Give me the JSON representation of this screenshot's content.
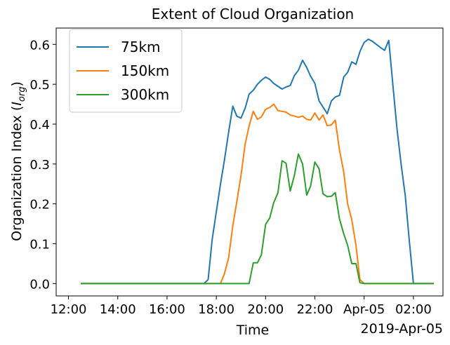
{
  "chart_data": {
    "type": "line",
    "title": "Extent of Cloud Organization",
    "xlabel": "Time",
    "ylabel_text": "Organization Index (",
    "ylabel_symbol": "I",
    "ylabel_subscript": "org",
    "ylabel_close": ")",
    "x_unit": "hours from 2019-04-04 00:00",
    "xlim": [
      11.5,
      27.2
    ],
    "ylim": [
      -0.031,
      0.641
    ],
    "x_ticks": [
      {
        "x": 12,
        "label": "12:00"
      },
      {
        "x": 14,
        "label": "14:00"
      },
      {
        "x": 16,
        "label": "16:00"
      },
      {
        "x": 18,
        "label": "18:00"
      },
      {
        "x": 20,
        "label": "20:00"
      },
      {
        "x": 22,
        "label": "22:00"
      },
      {
        "x": 24,
        "label": "Apr-05"
      },
      {
        "x": 26,
        "label": "02:00"
      }
    ],
    "x_offset_label": "2019-Apr-05",
    "y_ticks": [
      0.0,
      0.1,
      0.2,
      0.3,
      0.4,
      0.5,
      0.6
    ],
    "y_tick_labels": [
      "0.0",
      "0.1",
      "0.2",
      "0.3",
      "0.4",
      "0.5",
      "0.6"
    ],
    "legend_position": "upper-left",
    "grid": false,
    "series": [
      {
        "name": "75km",
        "color": "#1f77b4",
        "x": [
          12.5,
          17.5,
          17.67,
          17.83,
          18.0,
          18.17,
          18.33,
          18.5,
          18.67,
          18.83,
          19.0,
          19.17,
          19.33,
          19.5,
          19.67,
          19.83,
          20.0,
          20.17,
          20.33,
          20.5,
          20.67,
          20.83,
          21.0,
          21.17,
          21.33,
          21.5,
          21.67,
          21.83,
          22.0,
          22.17,
          22.33,
          22.5,
          22.67,
          22.83,
          23.0,
          23.17,
          23.33,
          23.5,
          23.67,
          23.83,
          24.0,
          24.17,
          24.33,
          24.5,
          24.67,
          24.83,
          25.0,
          25.17,
          25.33,
          25.5,
          25.67,
          25.83,
          26.0,
          26.17,
          26.33,
          26.5,
          26.67,
          26.83
        ],
        "y": [
          0.0,
          0.0,
          0.01,
          0.11,
          0.18,
          0.25,
          0.31,
          0.38,
          0.445,
          0.42,
          0.415,
          0.44,
          0.475,
          0.485,
          0.5,
          0.51,
          0.518,
          0.512,
          0.502,
          0.495,
          0.488,
          0.493,
          0.497,
          0.522,
          0.535,
          0.56,
          0.542,
          0.52,
          0.502,
          0.458,
          0.443,
          0.426,
          0.458,
          0.468,
          0.472,
          0.518,
          0.53,
          0.556,
          0.55,
          0.582,
          0.605,
          0.613,
          0.608,
          0.6,
          0.592,
          0.585,
          0.61,
          0.495,
          0.39,
          0.3,
          0.22,
          0.11,
          0.0,
          0.0,
          0.0,
          0.0,
          0.0,
          0.0
        ]
      },
      {
        "name": "150km",
        "color": "#ff7f0e",
        "x": [
          12.5,
          18.17,
          18.33,
          18.5,
          18.67,
          18.83,
          19.0,
          19.17,
          19.33,
          19.5,
          19.67,
          19.83,
          20.0,
          20.17,
          20.33,
          20.5,
          20.67,
          20.83,
          21.0,
          21.17,
          21.33,
          21.5,
          21.67,
          21.83,
          22.0,
          22.17,
          22.33,
          22.5,
          22.67,
          22.83,
          23.0,
          23.17,
          23.33,
          23.5,
          23.67,
          23.83,
          24.0,
          24.17,
          24.33,
          26.83
        ],
        "y": [
          0.0,
          0.0,
          0.025,
          0.065,
          0.145,
          0.205,
          0.27,
          0.35,
          0.395,
          0.432,
          0.412,
          0.418,
          0.437,
          0.442,
          0.45,
          0.434,
          0.432,
          0.43,
          0.423,
          0.42,
          0.417,
          0.42,
          0.412,
          0.41,
          0.428,
          0.41,
          0.423,
          0.396,
          0.398,
          0.41,
          0.335,
          0.28,
          0.2,
          0.16,
          0.095,
          0.01,
          0.0,
          0.0,
          0.0,
          0.0
        ]
      },
      {
        "name": "300km",
        "color": "#2ca02c",
        "x": [
          12.5,
          19.33,
          19.5,
          19.67,
          19.83,
          20.0,
          20.17,
          20.33,
          20.5,
          20.67,
          20.83,
          21.0,
          21.17,
          21.33,
          21.5,
          21.67,
          21.83,
          22.0,
          22.17,
          22.33,
          22.5,
          22.67,
          22.83,
          23.0,
          23.17,
          23.33,
          23.5,
          23.67,
          23.83,
          24.0,
          24.17,
          26.83
        ],
        "y": [
          0.0,
          0.0,
          0.052,
          0.052,
          0.072,
          0.148,
          0.165,
          0.203,
          0.228,
          0.308,
          0.302,
          0.232,
          0.272,
          0.325,
          0.3,
          0.222,
          0.245,
          0.305,
          0.288,
          0.225,
          0.218,
          0.219,
          0.228,
          0.162,
          0.125,
          0.096,
          0.05,
          0.05,
          0.002,
          0.0,
          0.0,
          0.0
        ]
      }
    ]
  }
}
